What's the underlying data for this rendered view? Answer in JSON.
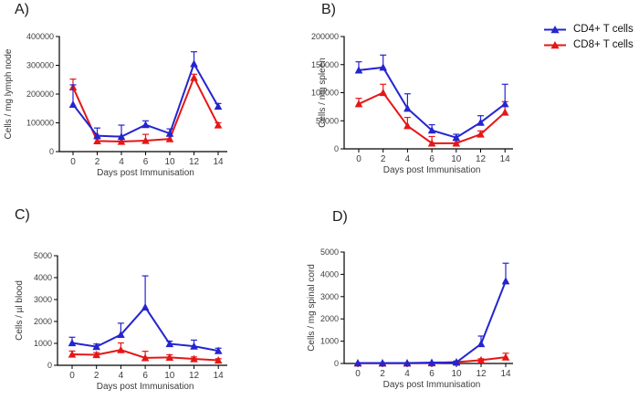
{
  "legend": {
    "items": [
      {
        "label": "CD4+ T cells",
        "color": "#2424d0"
      },
      {
        "label": "CD8+ T cells",
        "color": "#e51716"
      }
    ]
  },
  "chart_data": [
    {
      "id": "A",
      "panel_label": "A)",
      "type": "line",
      "ylabel": "Cells / mg lymph node",
      "xlabel": "Days post Immunisation",
      "ylim": [
        0,
        400000
      ],
      "yticks": [
        0,
        100000,
        200000,
        300000,
        400000
      ],
      "categories": [
        "0",
        "2",
        "4",
        "6",
        "10",
        "12",
        "14"
      ],
      "grid": false,
      "error_bars": "upper",
      "series": [
        {
          "name": "CD4+ T cells",
          "color": "#2424d0",
          "values": [
            164000,
            55000,
            52000,
            93000,
            63000,
            305000,
            157000
          ],
          "errors": [
            68000,
            27000,
            40000,
            14000,
            16000,
            42000,
            10000
          ]
        },
        {
          "name": "CD8+ T cells",
          "color": "#e51716",
          "values": [
            224000,
            37000,
            35000,
            38000,
            44000,
            257000,
            92000
          ],
          "errors": [
            28000,
            8000,
            8000,
            22000,
            10000,
            12000,
            8000
          ]
        }
      ]
    },
    {
      "id": "B",
      "panel_label": "B)",
      "type": "line",
      "ylabel": "Cells / mg spleen",
      "xlabel": "Days post Immunisation",
      "ylim": [
        0,
        200000
      ],
      "yticks": [
        0,
        50000,
        100000,
        150000,
        200000
      ],
      "categories": [
        "0",
        "2",
        "4",
        "6",
        "10",
        "12",
        "14"
      ],
      "grid": false,
      "error_bars": "upper",
      "series": [
        {
          "name": "CD4+ T cells",
          "color": "#2424d0",
          "values": [
            140000,
            145000,
            72000,
            33000,
            20000,
            47000,
            80000
          ],
          "errors": [
            15000,
            22000,
            26000,
            10000,
            6000,
            12000,
            35000
          ]
        },
        {
          "name": "CD8+ T cells",
          "color": "#e51716",
          "values": [
            80000,
            100000,
            41000,
            10000,
            10000,
            26000,
            65000
          ],
          "errors": [
            10000,
            15000,
            15000,
            12000,
            5000,
            6000,
            19000
          ]
        }
      ]
    },
    {
      "id": "C",
      "panel_label": "C)",
      "type": "line",
      "ylabel": "Cells / µl blood",
      "xlabel": "Days post Immunisation",
      "ylim": [
        0,
        5000
      ],
      "yticks": [
        0,
        1000,
        2000,
        3000,
        4000,
        5000
      ],
      "categories": [
        "0",
        "2",
        "4",
        "6",
        "10",
        "12",
        "14"
      ],
      "grid": false,
      "error_bars": "upper",
      "series": [
        {
          "name": "CD4+ T cells",
          "color": "#2424d0",
          "values": [
            1020,
            850,
            1400,
            2650,
            980,
            870,
            660
          ],
          "errors": [
            260,
            120,
            520,
            1430,
            120,
            280,
            120
          ]
        },
        {
          "name": "CD8+ T cells",
          "color": "#e51716",
          "values": [
            500,
            480,
            700,
            340,
            360,
            290,
            230
          ],
          "errors": [
            150,
            100,
            320,
            300,
            120,
            90,
            70
          ]
        }
      ]
    },
    {
      "id": "D",
      "panel_label": "D)",
      "type": "line",
      "ylabel": "Cells / mg spinal cord",
      "xlabel": "Days post Immunisation",
      "ylim": [
        0,
        5000
      ],
      "yticks": [
        0,
        1000,
        2000,
        3000,
        4000,
        5000
      ],
      "categories": [
        "0",
        "2",
        "4",
        "6",
        "10",
        "12",
        "14"
      ],
      "grid": false,
      "error_bars": "upper",
      "series": [
        {
          "name": "CD4+ T cells",
          "color": "#2424d0",
          "values": [
            20,
            20,
            20,
            40,
            50,
            880,
            3700
          ],
          "errors": [
            0,
            0,
            0,
            0,
            60,
            350,
            800
          ]
        },
        {
          "name": "CD8+ T cells",
          "color": "#e51716",
          "values": [
            10,
            10,
            10,
            20,
            60,
            150,
            280
          ],
          "errors": [
            0,
            0,
            0,
            0,
            0,
            60,
            180
          ]
        }
      ]
    }
  ]
}
